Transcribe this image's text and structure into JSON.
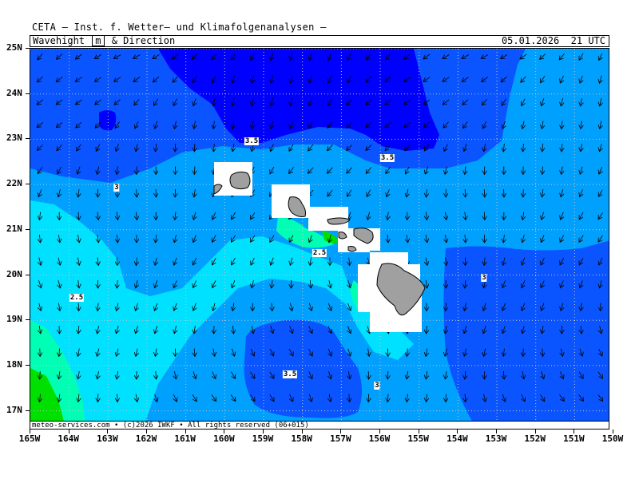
{
  "header": {
    "title": "CETA — Inst. f. Wetter— und Klimafolgenanalysen —",
    "variable_label": "Wavehight",
    "unit": "m",
    "variable_suffix": "& Direction",
    "timestamp": "05.01.2026  21 UTC"
  },
  "footer": {
    "credit": "meteo-services.com • (c)2026 IWKF • All rights reserved (06+015)"
  },
  "map": {
    "lat_labels": [
      "25N",
      "24N",
      "23N",
      "22N",
      "21N",
      "20N",
      "19N",
      "18N",
      "17N"
    ],
    "lon_labels": [
      "165W",
      "164W",
      "163W",
      "162W",
      "161W",
      "160W",
      "159W",
      "158W",
      "157W",
      "156W",
      "155W",
      "154W",
      "153W",
      "152W",
      "151W",
      "150W"
    ],
    "contour_labels": [
      "3.5",
      "3.5",
      "3",
      "2.5",
      "3",
      "2.5",
      "3.5",
      "3"
    ],
    "colors": {
      "wave_4": "#0000ff",
      "wave_3_5": "#0a55ff",
      "wave_3": "#00a0ff",
      "wave_2_5": "#00e0ff",
      "wave_2": "#00ffb4",
      "wave_1_5": "#00e000",
      "land": "#a0a0a0",
      "grid": "#c8c8c8"
    }
  }
}
